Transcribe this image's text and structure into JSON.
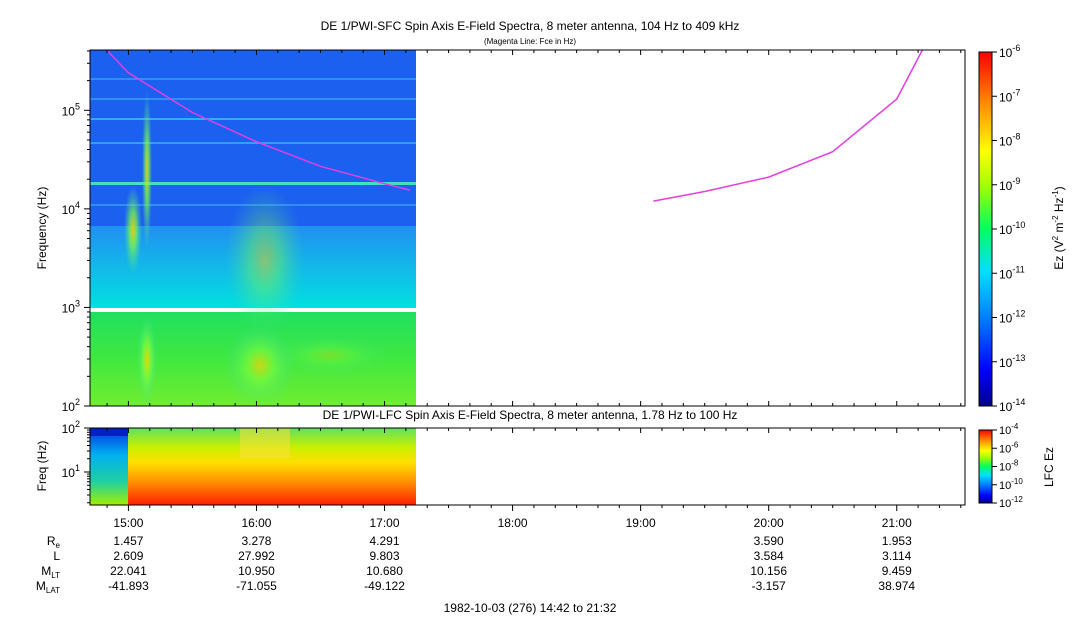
{
  "chart_data": [
    {
      "type": "heatmap",
      "title": "DE 1/PWI-SFC  Spin Axis E-Field Spectra, 8 meter antenna, 104 Hz to 409 kHz",
      "subtitle": "(Magenta Line: Fce in Hz)",
      "ylabel": "Frequency (Hz)",
      "yscale": "log",
      "ylim": [
        100,
        409000
      ],
      "y_ticks": [
        {
          "label": "10",
          "exp": "2"
        },
        {
          "label": "10",
          "exp": "3"
        },
        {
          "label": "10",
          "exp": "4"
        },
        {
          "label": "10",
          "exp": "5"
        }
      ],
      "data_coverage_hours": [
        14.7,
        17.25
      ],
      "colorbar": {
        "label": "Ez (V",
        "label_sup1": "2",
        "label_mid": " m",
        "label_sup2": "-2",
        "label_mid2": " Hz",
        "label_sup3": "-1",
        "label_end": ")",
        "scale": "log",
        "range": [
          1e-14,
          1e-06
        ],
        "tick_base": "10",
        "ticks": [
          "-6",
          "-7",
          "-8",
          "-9",
          "-10",
          "-11",
          "-12",
          "-13",
          "-14"
        ]
      },
      "fce_line": {
        "name": "Fce in Hz",
        "color": "#e040e0",
        "segments": [
          {
            "x": [
              14.83,
              15.0,
              15.5,
              16.0,
              16.5,
              17.0,
              17.2
            ],
            "y": [
              409000,
              240000,
              95000,
              48000,
              27000,
              18000,
              15500
            ]
          },
          {
            "x": [
              19.1,
              19.5,
              20.0,
              20.5,
              21.0,
              21.2
            ],
            "y": [
              12000,
              15000,
              21000,
              38000,
              130000,
              409000
            ]
          }
        ]
      }
    },
    {
      "type": "heatmap",
      "title": "DE 1/PWI-LFC  Spin Axis E-Field Spectra, 8 meter antenna, 1.78 Hz to 100 Hz",
      "ylabel": "Freq (Hz)",
      "yscale": "log",
      "ylim": [
        1.78,
        100
      ],
      "y_ticks": [
        {
          "label": "10",
          "exp": "2"
        },
        {
          "label": "10",
          "exp": "1"
        }
      ],
      "data_coverage_hours": [
        14.7,
        17.25
      ],
      "colorbar": {
        "label": "LFC Ez",
        "scale": "log",
        "range": [
          1e-12,
          0.0001
        ],
        "tick_base": "10",
        "ticks": [
          "-4",
          "-6",
          "-8",
          "-10",
          "-12"
        ]
      }
    }
  ],
  "time_axis": {
    "range_hours": [
      14.7,
      21.533
    ],
    "ticks": [
      "15:00",
      "16:00",
      "17:00",
      "18:00",
      "19:00",
      "20:00",
      "21:00"
    ]
  },
  "ephemeris": {
    "rows": [
      {
        "label": "R",
        "sub": "e",
        "values": [
          "1.457",
          "3.278",
          "4.291",
          "",
          "",
          "3.590",
          "1.953"
        ]
      },
      {
        "label": "L",
        "sub": "",
        "values": [
          "2.609",
          "27.992",
          "9.803",
          "",
          "",
          "3.584",
          "3.114"
        ]
      },
      {
        "label": "M",
        "sub": "LT",
        "values": [
          "22.041",
          "10.950",
          "10.680",
          "",
          "",
          "10.156",
          "9.459"
        ]
      },
      {
        "label": "M",
        "sub": "LAT",
        "values": [
          "-41.893",
          "-71.055",
          "-49.122",
          "",
          "",
          "-3.157",
          "38.974"
        ]
      }
    ]
  },
  "footer": "1982-10-03 (276) 14:42 to 21:32"
}
